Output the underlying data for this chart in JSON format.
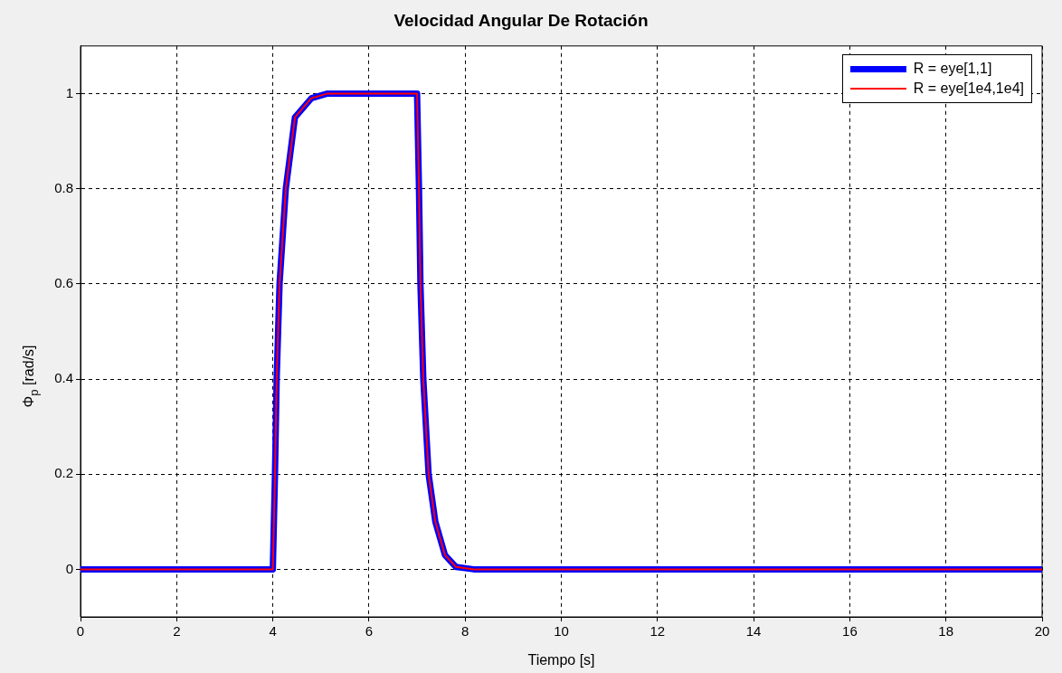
{
  "chart_data": {
    "type": "line",
    "title": "Velocidad Angular De Rotación",
    "xlabel": "Tiempo [s]",
    "ylabel": "Φ$_{p}$ [rad/s]",
    "x": [
      0,
      4,
      4.045,
      4.08,
      4.14,
      4.27,
      4.46,
      4.8,
      5.14,
      7,
      7.04,
      7.07,
      7.13,
      7.24,
      7.38,
      7.58,
      7.81,
      8.18,
      20
    ],
    "series": [
      {
        "name": "R = eye[1,1]",
        "color": "#0000ff",
        "values": [
          0,
          0,
          0.2,
          0.4,
          0.6,
          0.8,
          0.95,
          0.99,
          1,
          1,
          0.8,
          0.6,
          0.4,
          0.2,
          0.1,
          0.03,
          0.005,
          0,
          0
        ]
      },
      {
        "name": "R = eye[1e4,1e4]",
        "color": "#ff0000",
        "values": [
          0,
          0,
          0.2,
          0.4,
          0.6,
          0.8,
          0.95,
          0.99,
          1,
          1,
          0.8,
          0.6,
          0.4,
          0.2,
          0.1,
          0.03,
          0.005,
          0,
          0
        ]
      }
    ],
    "xlim": [
      0,
      20
    ],
    "xticks": [
      0,
      2,
      4,
      6,
      8,
      10,
      12,
      14,
      16,
      18,
      20
    ],
    "ylim": [
      -0.1,
      1.1
    ],
    "yticks": [
      0,
      0.2,
      0.4,
      0.6,
      0.8,
      1
    ],
    "grid": true,
    "legend": "top right",
    "marker": "none",
    "line_style": "solid"
  }
}
